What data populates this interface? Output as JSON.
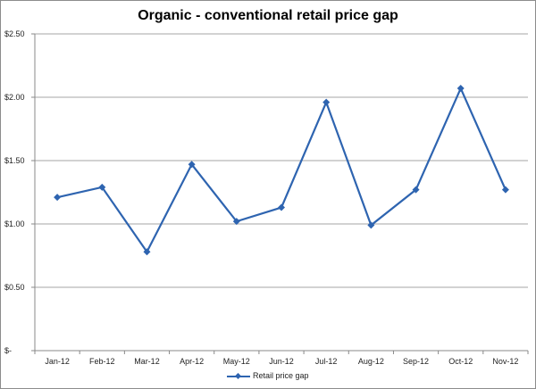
{
  "chart_data": {
    "type": "line",
    "title": "Organic - conventional  retail price gap",
    "xlabel": "",
    "ylabel": "",
    "categories": [
      "Jan-12",
      "Feb-12",
      "Mar-12",
      "Apr-12",
      "May-12",
      "Jun-12",
      "Jul-12",
      "Aug-12",
      "Sep-12",
      "Oct-12",
      "Nov-12"
    ],
    "series": [
      {
        "name": "Retail price gap",
        "values": [
          1.21,
          1.29,
          0.78,
          1.47,
          1.02,
          1.13,
          1.96,
          0.99,
          1.27,
          2.07,
          1.27
        ],
        "color": "#2e64b0"
      }
    ],
    "ylim": [
      0,
      2.5
    ],
    "yticks": [
      0,
      0.5,
      1.0,
      1.5,
      2.0,
      2.5
    ],
    "ytick_labels": [
      "$-",
      "$0.50",
      "$1.00",
      "$1.50",
      "$2.00",
      "$2.50"
    ],
    "grid": "horizontal",
    "legend": "bottom"
  }
}
